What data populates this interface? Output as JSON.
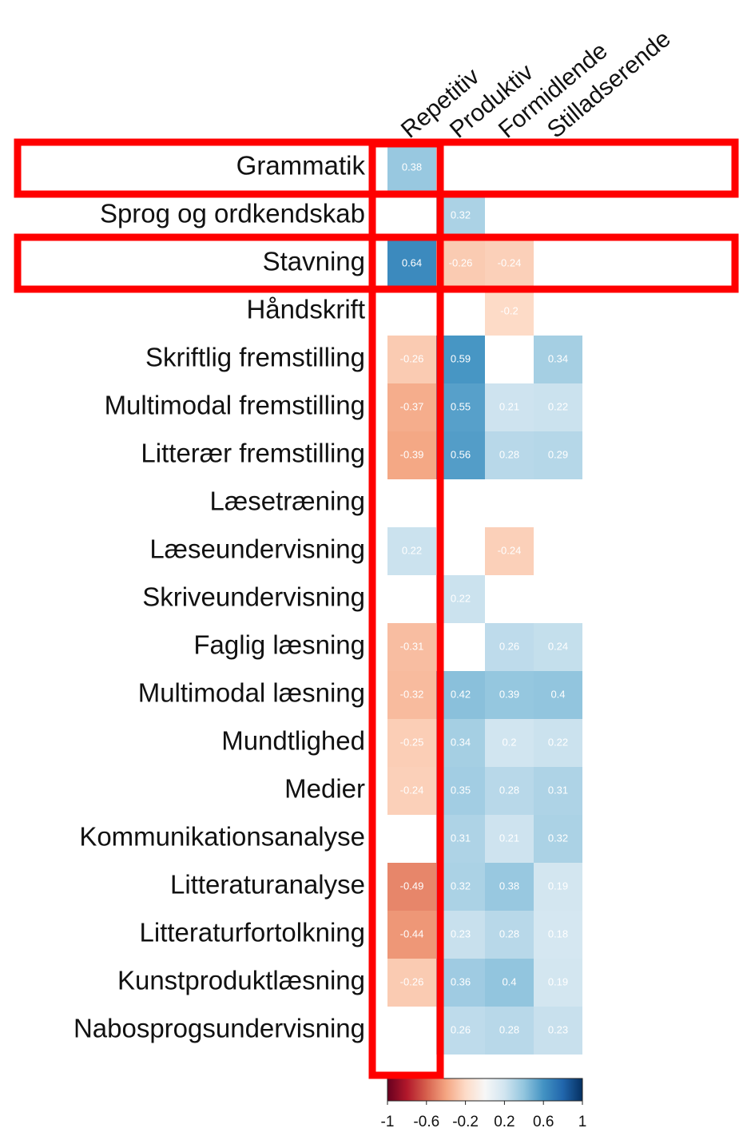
{
  "chart_data": {
    "type": "heatmap",
    "columns": [
      "Repetitiv",
      "Produktiv",
      "Formidlende",
      "Stilladserende"
    ],
    "rows": [
      "Grammatik",
      "Sprog og ordkendskab",
      "Stavning",
      "Håndskrift",
      "Skriftlig fremstilling",
      "Multimodal fremstilling",
      "Litterær fremstilling",
      "Læsetræning",
      "Læseundervisning",
      "Skriveundervisning",
      "Faglig læsning",
      "Multimodal læsning",
      "Mundtlighed",
      "Medier",
      "Kommunikationsanalyse",
      "Litteraturanalyse",
      "Litteraturfortolkning",
      "Kunstproduktlæsning",
      "Nabosprogsundervisning"
    ],
    "values": [
      [
        0.38,
        null,
        null,
        null
      ],
      [
        null,
        0.32,
        null,
        null
      ],
      [
        0.64,
        -0.26,
        -0.24,
        null
      ],
      [
        null,
        null,
        -0.2,
        null
      ],
      [
        -0.26,
        0.59,
        null,
        0.34
      ],
      [
        -0.37,
        0.55,
        0.21,
        0.22
      ],
      [
        -0.39,
        0.56,
        0.28,
        0.29
      ],
      [
        null,
        null,
        null,
        null
      ],
      [
        0.22,
        null,
        -0.24,
        null
      ],
      [
        null,
        0.22,
        null,
        null
      ],
      [
        -0.31,
        null,
        0.26,
        0.24
      ],
      [
        -0.32,
        0.42,
        0.39,
        0.4
      ],
      [
        -0.25,
        0.34,
        0.2,
        0.22
      ],
      [
        -0.24,
        0.35,
        0.28,
        0.31
      ],
      [
        null,
        0.31,
        0.21,
        0.32
      ],
      [
        -0.49,
        0.32,
        0.38,
        0.19
      ],
      [
        -0.44,
        0.23,
        0.28,
        0.18
      ],
      [
        -0.26,
        0.36,
        0.4,
        0.19
      ],
      [
        null,
        0.26,
        0.28,
        0.23
      ]
    ],
    "zlim": [
      -1,
      1
    ],
    "colorbar_ticks": [
      -1,
      -0.6,
      -0.2,
      0.2,
      0.6,
      1
    ],
    "colors": [
      "#67001f",
      "#b2182b",
      "#d6604d",
      "#f4a582",
      "#fddbc7",
      "#f7f7f7",
      "#d1e5f0",
      "#92c5de",
      "#4393c3",
      "#2166ac",
      "#053061"
    ]
  }
}
